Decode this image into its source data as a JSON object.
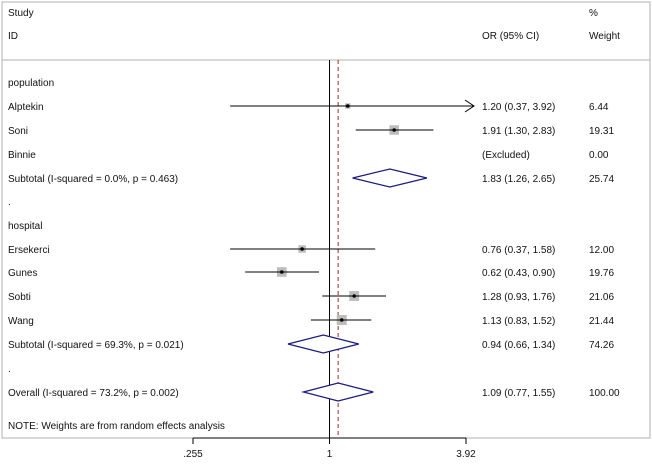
{
  "chart_data": {
    "type": "forest",
    "headers": {
      "study": "Study",
      "id": "ID",
      "or_ci": "OR (95% CI)",
      "pct": "%",
      "weight": "Weight"
    },
    "axis": {
      "scale": "log",
      "range": [
        0.255,
        3.92
      ],
      "ticks": [
        {
          "value": 0.255,
          "label": ".255"
        },
        {
          "value": 1,
          "label": "1"
        },
        {
          "value": 3.92,
          "label": "3.92"
        }
      ],
      "null_line": 1,
      "overall_line": 1.09
    },
    "rows": [
      {
        "kind": "group",
        "label": "population"
      },
      {
        "kind": "study",
        "label": "Alptekin",
        "or": 1.2,
        "lo": 0.37,
        "hi": 3.92,
        "weight": 6.44,
        "arrow_right": true,
        "or_ci": "1.20 (0.37, 3.92)",
        "weight_label": "6.44"
      },
      {
        "kind": "study",
        "label": "Soni",
        "or": 1.91,
        "lo": 1.3,
        "hi": 2.83,
        "weight": 19.31,
        "or_ci": "1.91 (1.30, 2.83)",
        "weight_label": "19.31"
      },
      {
        "kind": "study",
        "label": "Binnie",
        "excluded": true,
        "or_ci": "(Excluded)",
        "weight_label": "0.00"
      },
      {
        "kind": "subtotal",
        "label": "Subtotal  (I-squared = 0.0%, p = 0.463)",
        "or": 1.83,
        "lo": 1.26,
        "hi": 2.65,
        "or_ci": "1.83 (1.26, 2.65)",
        "weight_label": "25.74"
      },
      {
        "kind": "sep",
        "label": "."
      },
      {
        "kind": "group",
        "label": "hospital"
      },
      {
        "kind": "study",
        "label": "Ersekerci",
        "or": 0.76,
        "lo": 0.37,
        "hi": 1.58,
        "weight": 12.0,
        "or_ci": "0.76 (0.37, 1.58)",
        "weight_label": "12.00"
      },
      {
        "kind": "study",
        "label": "Gunes",
        "or": 0.62,
        "lo": 0.43,
        "hi": 0.9,
        "weight": 19.76,
        "or_ci": "0.62 (0.43, 0.90)",
        "weight_label": "19.76"
      },
      {
        "kind": "study",
        "label": "Sobti",
        "or": 1.28,
        "lo": 0.93,
        "hi": 1.76,
        "weight": 21.06,
        "or_ci": "1.28 (0.93, 1.76)",
        "weight_label": "21.06"
      },
      {
        "kind": "study",
        "label": "Wang",
        "or": 1.13,
        "lo": 0.83,
        "hi": 1.52,
        "weight": 21.44,
        "or_ci": "1.13 (0.83, 1.52)",
        "weight_label": "21.44"
      },
      {
        "kind": "subtotal",
        "label": "Subtotal  (I-squared = 69.3%, p = 0.021)",
        "or": 0.94,
        "lo": 0.66,
        "hi": 1.34,
        "or_ci": "0.94 (0.66, 1.34)",
        "weight_label": "74.26"
      },
      {
        "kind": "sep",
        "label": "."
      },
      {
        "kind": "overall",
        "label": "Overall  (I-squared = 73.2%, p = 0.002)",
        "or": 1.09,
        "lo": 0.77,
        "hi": 1.55,
        "or_ci": "1.09 (0.77, 1.55)",
        "weight_label": "100.00"
      }
    ],
    "note": "NOTE: Weights are from random effects analysis",
    "colors": {
      "diamond": "#1a1a80",
      "ci_line": "#000000",
      "box": "#bdbdbd",
      "overall_line": "#9b2d2d",
      "frame": "#b0b0b0"
    }
  }
}
